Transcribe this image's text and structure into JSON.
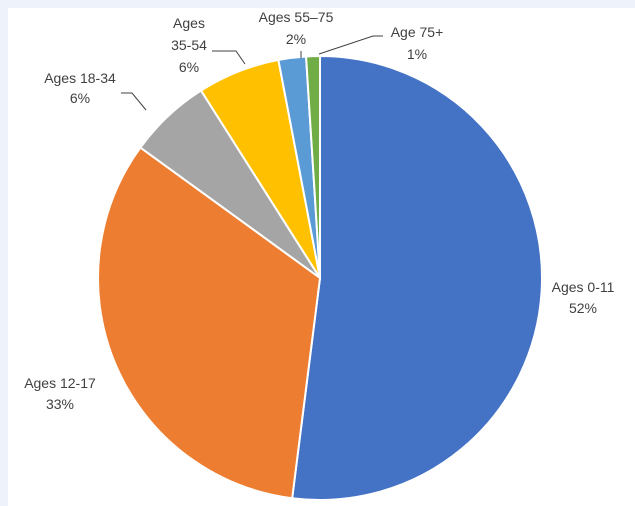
{
  "chart_data": {
    "type": "pie",
    "title": "",
    "start_angle_deg": 0,
    "direction": "clockwise",
    "slices": [
      {
        "name": "Ages 0-11",
        "value": 52,
        "label_lines": [
          "Ages 0-11",
          "52%"
        ],
        "color": "#4472c4"
      },
      {
        "name": "Ages 12-17",
        "value": 33,
        "label_lines": [
          "Ages 12-17",
          "33%"
        ],
        "color": "#ed7d31"
      },
      {
        "name": "Ages 18-34",
        "value": 6,
        "label_lines": [
          "Ages 18-34",
          "6%"
        ],
        "color": "#a5a5a5"
      },
      {
        "name": "Ages 35-54",
        "value": 6,
        "label_lines": [
          "Ages",
          "35-54",
          "6%"
        ],
        "color": "#ffc000"
      },
      {
        "name": "Ages 55–75",
        "value": 2,
        "label_lines": [
          "Ages 55–75",
          "2%"
        ],
        "color": "#5b9bd5"
      },
      {
        "name": "Age 75+",
        "value": 1,
        "label_lines": [
          "Age 75+",
          "1%"
        ],
        "color": "#70ad47"
      }
    ],
    "legend": "none",
    "data_labels": "outside with leader lines"
  }
}
